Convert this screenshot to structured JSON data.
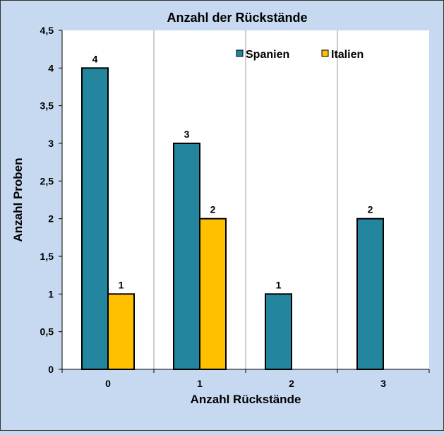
{
  "chart_data": {
    "type": "bar",
    "title": "Anzahl der Rückstände",
    "xlabel": "Anzahl Rückstände",
    "ylabel": "Anzahl Proben",
    "categories": [
      "0",
      "1",
      "2",
      "3"
    ],
    "series": [
      {
        "name": "Spanien",
        "values": [
          4,
          3,
          1,
          2
        ],
        "color": "#23869e"
      },
      {
        "name": "Italien",
        "values": [
          1,
          2,
          null,
          null
        ],
        "color": "#ffc000"
      }
    ],
    "ylim": [
      0,
      4.5
    ],
    "yticks": [
      "0",
      "0,5",
      "1",
      "1,5",
      "2",
      "2,5",
      "3",
      "3,5",
      "4",
      "4,5"
    ],
    "legend": "top-right",
    "grid": "vertical category separators"
  }
}
